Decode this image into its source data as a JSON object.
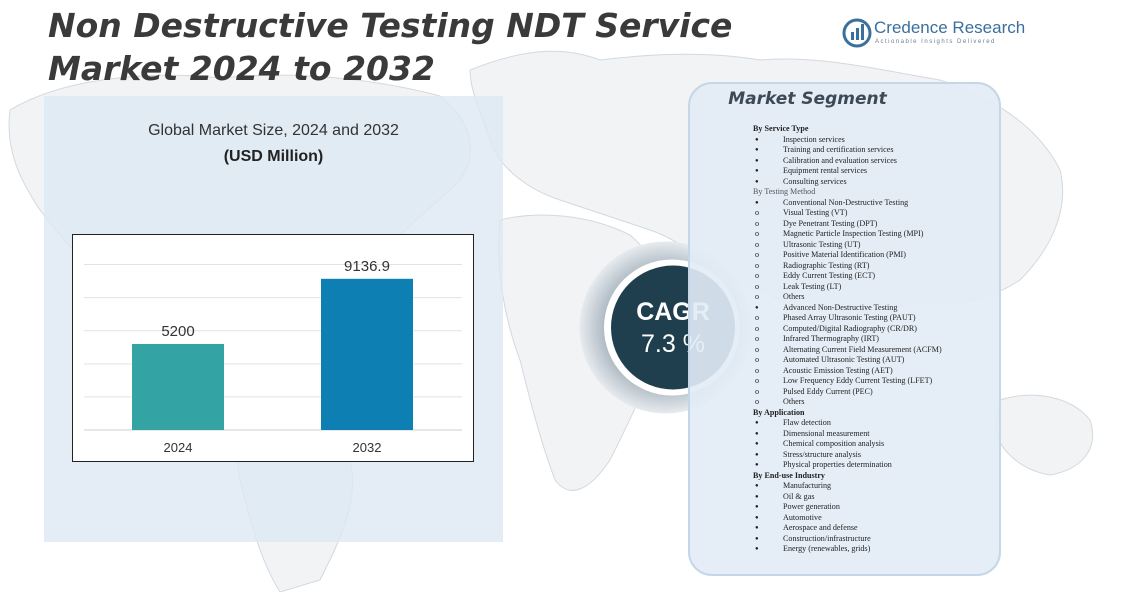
{
  "title": "Non Destructive Testing NDT Service Market 2024 to 2032",
  "logo": {
    "name": "Credence Research",
    "tagline": "Actionable Insights Delivered"
  },
  "chart_title": "Global Market Size,  2024 and 2032",
  "chart_units": "(USD Million)",
  "chart_data": {
    "type": "bar",
    "title": "Global Market Size,  2024 and 2032",
    "subtitle": "(USD Million)",
    "categories": [
      "2024",
      "2032"
    ],
    "values": [
      5200,
      9136.9
    ],
    "value_labels": [
      "5200",
      "9136.9"
    ],
    "colors": [
      "#33a3a3",
      "#0d7fb3"
    ],
    "ylim": [
      0,
      11000
    ],
    "grid": true,
    "legend": "none"
  },
  "cagr": {
    "label": "CAGR",
    "value": "7.3 %"
  },
  "segment": {
    "title": "Market Segment",
    "groups": [
      {
        "heading": "By Service Type",
        "style": "bold",
        "items": [
          {
            "b": "●",
            "t": "Inspection services"
          },
          {
            "b": "●",
            "t": "Training and certification services"
          },
          {
            "b": "●",
            "t": "Calibration and evaluation services"
          },
          {
            "b": "●",
            "t": "Equipment rental services"
          },
          {
            "b": "●",
            "t": "Consulting services"
          }
        ]
      },
      {
        "heading": "By Testing Method",
        "style": "light",
        "items": [
          {
            "b": "●",
            "t": "Conventional Non-Destructive Testing"
          },
          {
            "b": "o",
            "t": "Visual Testing (VT)"
          },
          {
            "b": "o",
            "t": "Dye Penetrant Testing (DPT)"
          },
          {
            "b": "o",
            "t": "Magnetic Particle Inspection Testing (MPI)"
          },
          {
            "b": "o",
            "t": "Ultrasonic Testing (UT)"
          },
          {
            "b": "o",
            "t": "Positive Material Identification (PMI)"
          },
          {
            "b": "o",
            "t": "Radiographic Testing (RT)"
          },
          {
            "b": "o",
            "t": "Eddy Current Testing (ECT)"
          },
          {
            "b": "o",
            "t": "Leak Testing (LT)"
          },
          {
            "b": "o",
            "t": "Others"
          },
          {
            "b": "●",
            "t": "Advanced Non-Destructive Testing"
          },
          {
            "b": "o",
            "t": "Phased Array Ultrasonic Testing (PAUT)"
          },
          {
            "b": "o",
            "t": "Computed/Digital Radiography (CR/DR)"
          },
          {
            "b": "o",
            "t": "Infrared Thermography (IRT)"
          },
          {
            "b": "o",
            "t": "Alternating Current Field Measurement (ACFM)"
          },
          {
            "b": "o",
            "t": "Automated Ultrasonic Testing (AUT)"
          },
          {
            "b": "o",
            "t": "Acoustic Emission Testing (AET)"
          },
          {
            "b": "o",
            "t": "Low Frequency Eddy Current Testing (LFET)"
          },
          {
            "b": "o",
            "t": "Pulsed Eddy Current (PEC)"
          },
          {
            "b": "o",
            "t": "Others"
          }
        ]
      },
      {
        "heading": "By Application",
        "style": "bold",
        "items": [
          {
            "b": "●",
            "t": "Flaw detection"
          },
          {
            "b": "●",
            "t": "Dimensional measurement"
          },
          {
            "b": "●",
            "t": "Chemical composition analysis"
          },
          {
            "b": "●",
            "t": "Stress/structure analysis"
          },
          {
            "b": "●",
            "t": "Physical properties determination"
          }
        ]
      },
      {
        "heading": "By End-use Industry",
        "style": "bold",
        "items": [
          {
            "b": "●",
            "t": "Manufacturing"
          },
          {
            "b": "●",
            "t": "Oil & gas"
          },
          {
            "b": "●",
            "t": "Power generation"
          },
          {
            "b": "●",
            "t": "Automotive"
          },
          {
            "b": "●",
            "t": "Aerospace and defense"
          },
          {
            "b": "●",
            "t": "Construction/infrastructure"
          },
          {
            "b": "●",
            "t": "Energy (renewables, grids)"
          }
        ]
      }
    ]
  }
}
